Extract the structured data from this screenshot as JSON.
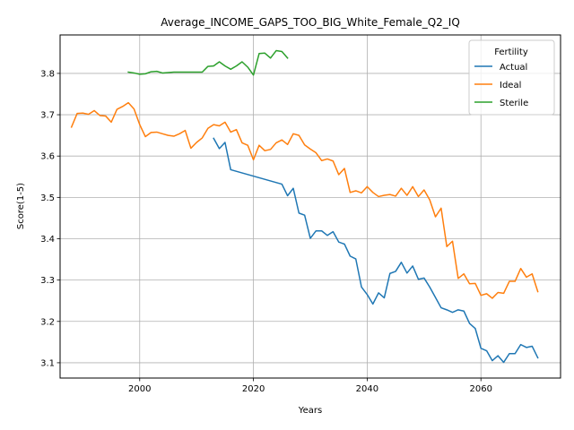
{
  "chart_data": {
    "type": "line",
    "title": "Average_INCOME_GAPS_TOO_BIG_White_Female_Q2_IQ",
    "xlabel": "Years",
    "ylabel": "Score(1-5)",
    "xlim": [
      1986,
      2074
    ],
    "ylim": [
      3.063,
      3.893
    ],
    "xticks": [
      2000,
      2020,
      2040,
      2060
    ],
    "yticks": [
      3.1,
      3.2,
      3.3,
      3.4,
      3.5,
      3.6,
      3.7,
      3.8
    ],
    "grid": true,
    "legend": {
      "title": "Fertility",
      "placement": "top-right"
    },
    "series": [
      {
        "name": "Actual",
        "color": "#1f77b4",
        "x": [
          2013,
          2014,
          2015,
          2016,
          2025,
          2026,
          2027,
          2028,
          2029,
          2030,
          2031,
          2032,
          2033,
          2034,
          2035,
          2036,
          2037,
          2038,
          2039,
          2040,
          2041,
          2042,
          2043,
          2044,
          2045,
          2046,
          2047,
          2048,
          2049,
          2050,
          2051,
          2052,
          2053,
          2054,
          2055,
          2056,
          2057,
          2058,
          2059,
          2060,
          2061,
          2062,
          2063,
          2064,
          2065,
          2066,
          2067,
          2068,
          2069,
          2070
        ],
        "y": [
          3.643,
          3.618,
          3.633,
          3.567,
          3.532,
          3.504,
          3.522,
          3.462,
          3.457,
          3.401,
          3.419,
          3.419,
          3.408,
          3.417,
          3.392,
          3.387,
          3.358,
          3.351,
          3.283,
          3.265,
          3.242,
          3.269,
          3.257,
          3.316,
          3.321,
          3.343,
          3.317,
          3.334,
          3.302,
          3.305,
          3.283,
          3.258,
          3.233,
          3.228,
          3.222,
          3.228,
          3.225,
          3.195,
          3.183,
          3.135,
          3.129,
          3.105,
          3.117,
          3.101,
          3.122,
          3.122,
          3.144,
          3.137,
          3.14,
          3.112
        ]
      },
      {
        "name": "Ideal",
        "color": "#ff7f0e",
        "x": [
          1988,
          1989,
          1990,
          1991,
          1992,
          1993,
          1994,
          1995,
          1996,
          1997,
          1998,
          1999,
          2000,
          2001,
          2002,
          2003,
          2004,
          2005,
          2006,
          2007,
          2008,
          2009,
          2010,
          2011,
          2012,
          2013,
          2014,
          2015,
          2016,
          2017,
          2018,
          2019,
          2020,
          2021,
          2022,
          2023,
          2024,
          2025,
          2026,
          2027,
          2028,
          2029,
          2030,
          2031,
          2032,
          2033,
          2034,
          2035,
          2036,
          2037,
          2038,
          2039,
          2040,
          2041,
          2042,
          2043,
          2044,
          2045,
          2046,
          2047,
          2048,
          2049,
          2050,
          2051,
          2052,
          2053,
          2054,
          2055,
          2056,
          2057,
          2058,
          2059,
          2060,
          2061,
          2062,
          2063,
          2064,
          2065,
          2066,
          2067,
          2068,
          2069,
          2070
        ],
        "y": [
          3.67,
          3.703,
          3.704,
          3.701,
          3.71,
          3.698,
          3.697,
          3.682,
          3.713,
          3.72,
          3.729,
          3.714,
          3.676,
          3.647,
          3.657,
          3.658,
          3.654,
          3.65,
          3.648,
          3.654,
          3.662,
          3.619,
          3.633,
          3.644,
          3.667,
          3.676,
          3.673,
          3.682,
          3.658,
          3.664,
          3.632,
          3.626,
          3.591,
          3.626,
          3.613,
          3.616,
          3.632,
          3.639,
          3.628,
          3.654,
          3.65,
          3.627,
          3.617,
          3.608,
          3.589,
          3.593,
          3.588,
          3.555,
          3.57,
          3.512,
          3.516,
          3.511,
          3.526,
          3.512,
          3.502,
          3.505,
          3.507,
          3.503,
          3.522,
          3.505,
          3.526,
          3.502,
          3.518,
          3.494,
          3.453,
          3.474,
          3.381,
          3.394,
          3.304,
          3.315,
          3.291,
          3.292,
          3.263,
          3.267,
          3.256,
          3.27,
          3.268,
          3.297,
          3.297,
          3.328,
          3.307,
          3.315,
          3.272
        ]
      },
      {
        "name": "Sterile",
        "color": "#2ca02c",
        "x": [
          1998,
          1999,
          2000,
          2001,
          2002,
          2003,
          2004,
          2005,
          2006,
          2007,
          2008,
          2009,
          2010,
          2011,
          2012,
          2013,
          2014,
          2015,
          2016,
          2017,
          2018,
          2019,
          2020,
          2021,
          2022,
          2023,
          2024,
          2025,
          2026
        ],
        "y": [
          3.803,
          3.801,
          3.798,
          3.799,
          3.804,
          3.805,
          3.801,
          3.802,
          3.803,
          3.803,
          3.803,
          3.803,
          3.803,
          3.803,
          3.817,
          3.818,
          3.828,
          3.818,
          3.81,
          3.818,
          3.828,
          3.815,
          3.796,
          3.848,
          3.849,
          3.837,
          3.855,
          3.853,
          3.837
        ]
      }
    ]
  }
}
